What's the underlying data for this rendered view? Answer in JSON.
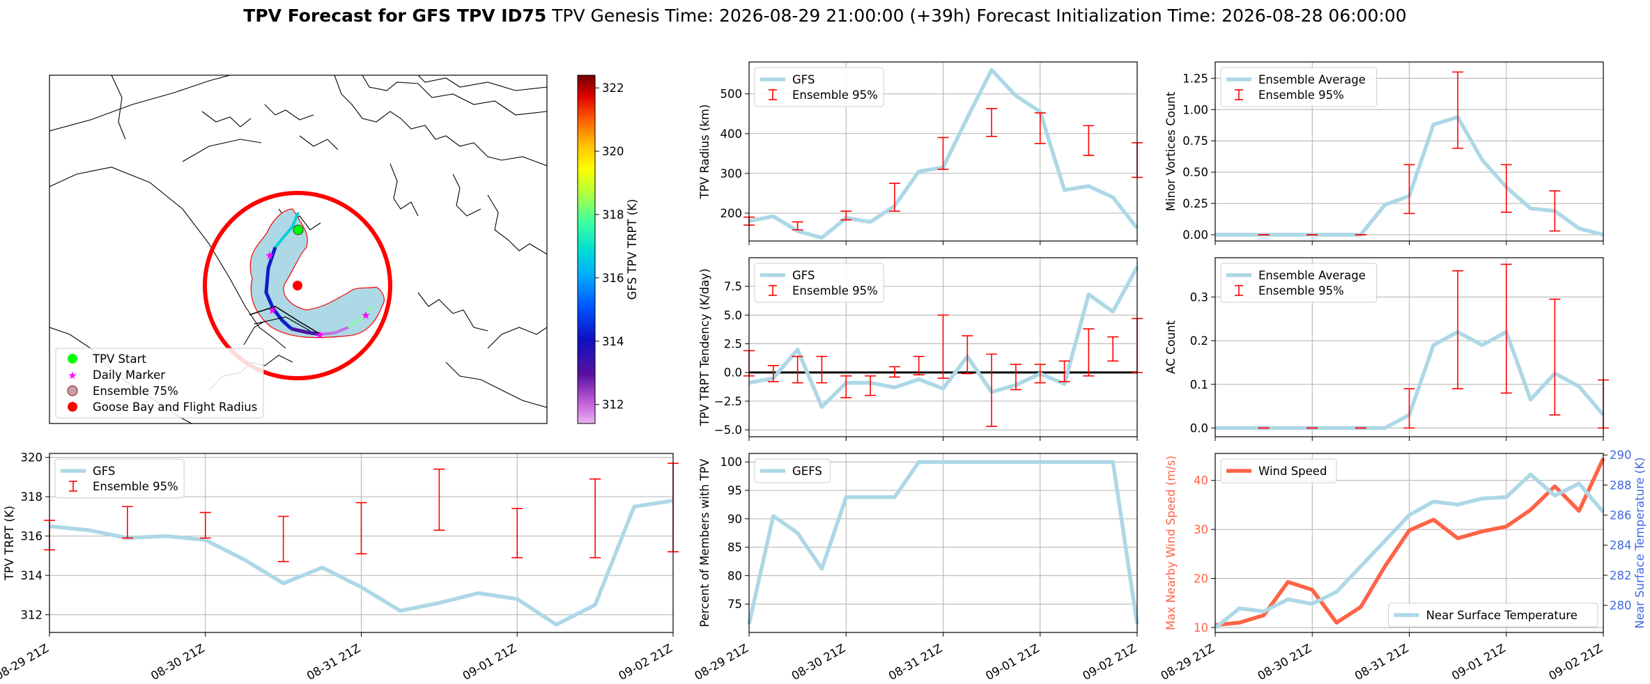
{
  "title": {
    "bold": "TPV Forecast for GFS TPV ID75",
    "genesis": "TPV Genesis Time: 2026-08-29 21:00:00 (+39h)",
    "init": "Forecast Initialization Time: 2026-08-28 06:00:00"
  },
  "time_ticks": [
    "08-29 21Z",
    "08-30 21Z",
    "08-31 21Z",
    "09-01 21Z",
    "09-02 21Z"
  ],
  "colors": {
    "gfs_line": "#add8e6",
    "ensemble_bar": "#ff0000",
    "wind": "#ff6347",
    "temp_axis": "#4169e1",
    "zero_line": "#000000",
    "track_start": "#00ff00",
    "daily_marker": "#ff00ff",
    "ensemble_shade": "#add8e6",
    "flight_radius": "#ff0000"
  },
  "map": {
    "colorbar_label": "GFS TPV TRPT (K)",
    "colorbar_ticks": [
      "312",
      "314",
      "316",
      "318",
      "320",
      "322"
    ],
    "colorbar_range": [
      311.4,
      322.4
    ],
    "legend": [
      "TPV Start",
      "Daily Marker",
      "Ensemble 75%",
      "Goose Bay and Flight Radius"
    ]
  },
  "chart_data": [
    {
      "id": "radius",
      "type": "line",
      "ylabel": "TPV Radius (km)",
      "ylim": [
        130,
        580
      ],
      "yticks": [
        200,
        300,
        400,
        500
      ],
      "legend": [
        "GFS",
        "Ensemble 95%"
      ],
      "series": [
        {
          "name": "GFS",
          "values": [
            180,
            192,
            155,
            138,
            188,
            178,
            218,
            305,
            315,
            440,
            560,
            495,
            455,
            258,
            268,
            240,
            162
          ]
        }
      ],
      "ensemble_95": [
        {
          "i": 0,
          "low": 170,
          "high": 190
        },
        {
          "i": 2,
          "low": 158,
          "high": 178
        },
        {
          "i": 4,
          "low": 183,
          "high": 205
        },
        {
          "i": 6,
          "low": 205,
          "high": 275
        },
        {
          "i": 8,
          "low": 310,
          "high": 390
        },
        {
          "i": 10,
          "low": 393,
          "high": 463
        },
        {
          "i": 12,
          "low": 375,
          "high": 452
        },
        {
          "i": 14,
          "low": 345,
          "high": 420
        },
        {
          "i": 16,
          "low": 290,
          "high": 377
        }
      ]
    },
    {
      "id": "minor",
      "type": "line",
      "ylabel": "Minor Vortices Count",
      "ylim": [
        -0.05,
        1.38
      ],
      "yticks": [
        "0.00",
        "0.25",
        "0.50",
        "0.75",
        "1.00",
        "1.25"
      ],
      "legend": [
        "Ensemble Average",
        "Ensemble 95%"
      ],
      "series": [
        {
          "name": "Ensemble Average",
          "values": [
            0,
            0,
            0,
            0,
            0,
            0,
            0,
            0.24,
            0.31,
            0.88,
            0.94,
            0.6,
            0.38,
            0.21,
            0.19,
            0.05,
            0
          ]
        }
      ],
      "ensemble_95": [
        {
          "i": 2,
          "low": 0,
          "high": 0
        },
        {
          "i": 4,
          "low": 0,
          "high": 0
        },
        {
          "i": 6,
          "low": 0,
          "high": 0
        },
        {
          "i": 8,
          "low": 0.17,
          "high": 0.56
        },
        {
          "i": 10,
          "low": 0.69,
          "high": 1.3
        },
        {
          "i": 12,
          "low": 0.18,
          "high": 0.56
        },
        {
          "i": 14,
          "low": 0.03,
          "high": 0.35
        }
      ]
    },
    {
      "id": "tendency",
      "type": "line",
      "ylabel": "TPV TRPT Tendency (K/day)",
      "ylim": [
        -5.6,
        10
      ],
      "yticks": [
        "−5.0",
        "−2.5",
        "0.0",
        "2.5",
        "5.0",
        "7.5"
      ],
      "legend": [
        "GFS",
        "Ensemble 95%"
      ],
      "series": [
        {
          "name": "GFS",
          "values": [
            -0.9,
            -0.5,
            2.0,
            -3.0,
            -0.9,
            -0.9,
            -1.3,
            -0.6,
            -1.4,
            1.4,
            -1.7,
            -1.1,
            -0.1,
            -1.0,
            6.8,
            5.3,
            9.2
          ]
        }
      ],
      "ensemble_95": [
        {
          "i": 0,
          "low": -0.3,
          "high": 1.9
        },
        {
          "i": 1,
          "low": -0.8,
          "high": 0.6
        },
        {
          "i": 2,
          "low": -0.9,
          "high": 1.4
        },
        {
          "i": 3,
          "low": -0.9,
          "high": 1.4
        },
        {
          "i": 4,
          "low": -2.2,
          "high": -0.3
        },
        {
          "i": 5,
          "low": -2.0,
          "high": -0.3
        },
        {
          "i": 6,
          "low": -0.4,
          "high": 0.5
        },
        {
          "i": 7,
          "low": -0.2,
          "high": 1.4
        },
        {
          "i": 8,
          "low": -0.5,
          "high": 5.0
        },
        {
          "i": 9,
          "low": -0.1,
          "high": 3.2
        },
        {
          "i": 10,
          "low": -4.7,
          "high": 1.6
        },
        {
          "i": 11,
          "low": -1.5,
          "high": 0.7
        },
        {
          "i": 12,
          "low": -0.9,
          "high": 0.7
        },
        {
          "i": 13,
          "low": -0.8,
          "high": 1.0
        },
        {
          "i": 14,
          "low": -0.3,
          "high": 3.8
        },
        {
          "i": 15,
          "low": 1.0,
          "high": 3.1
        },
        {
          "i": 16,
          "low": 0.0,
          "high": 4.7
        }
      ],
      "zero_line": true
    },
    {
      "id": "ac",
      "type": "line",
      "ylabel": "AC Count",
      "ylim": [
        -0.02,
        0.39
      ],
      "yticks": [
        "0.0",
        "0.1",
        "0.2",
        "0.3"
      ],
      "legend": [
        "Ensemble Average",
        "Ensemble 95%"
      ],
      "series": [
        {
          "name": "Ensemble Average",
          "values": [
            0,
            0,
            0,
            0,
            0,
            0,
            0,
            0,
            0.03,
            0.19,
            0.22,
            0.19,
            0.22,
            0.065,
            0.125,
            0.095,
            0.03
          ]
        }
      ],
      "ensemble_95": [
        {
          "i": 2,
          "low": 0,
          "high": 0
        },
        {
          "i": 4,
          "low": 0,
          "high": 0
        },
        {
          "i": 6,
          "low": 0,
          "high": 0
        },
        {
          "i": 8,
          "low": 0,
          "high": 0.09
        },
        {
          "i": 10,
          "low": 0.09,
          "high": 0.36
        },
        {
          "i": 12,
          "low": 0.08,
          "high": 0.375
        },
        {
          "i": 14,
          "low": 0.03,
          "high": 0.295
        },
        {
          "i": 16,
          "low": 0,
          "high": 0.11
        }
      ]
    },
    {
      "id": "trpt",
      "type": "line",
      "ylabel": "TPV TRPT (K)",
      "ylim": [
        311.1,
        320.2
      ],
      "yticks": [
        "312",
        "314",
        "316",
        "318",
        "320"
      ],
      "legend": [
        "GFS",
        "Ensemble 95%"
      ],
      "series": [
        {
          "name": "GFS",
          "values": [
            316.5,
            316.3,
            315.9,
            316.0,
            315.8,
            314.8,
            313.6,
            314.4,
            313.4,
            312.2,
            312.6,
            313.1,
            312.8,
            311.5,
            312.5,
            317.5,
            317.8
          ]
        }
      ],
      "ensemble_95": [
        {
          "i": 0,
          "low": 315.3,
          "high": 316.8
        },
        {
          "i": 2,
          "low": 315.9,
          "high": 317.5
        },
        {
          "i": 4,
          "low": 315.9,
          "high": 317.2
        },
        {
          "i": 6,
          "low": 314.7,
          "high": 317.0
        },
        {
          "i": 8,
          "low": 315.1,
          "high": 317.7
        },
        {
          "i": 10,
          "low": 316.3,
          "high": 319.4
        },
        {
          "i": 12,
          "low": 314.9,
          "high": 317.4
        },
        {
          "i": 14,
          "low": 314.9,
          "high": 318.9
        },
        {
          "i": 16,
          "low": 315.2,
          "high": 319.7
        }
      ]
    },
    {
      "id": "percent",
      "type": "line",
      "ylabel": "Percent of Members with TPV",
      "ylim": [
        70,
        101.5
      ],
      "yticks": [
        "75",
        "80",
        "85",
        "90",
        "95",
        "100"
      ],
      "legend": [
        "GEFS"
      ],
      "series": [
        {
          "name": "GEFS",
          "values": [
            71.5,
            90.5,
            87.5,
            81.2,
            93.8,
            93.8,
            93.8,
            100,
            100,
            100,
            100,
            100,
            100,
            100,
            100,
            100,
            71.5
          ]
        }
      ]
    },
    {
      "id": "wind_temp",
      "type": "line",
      "ylabel": "Max Nearby Wind Speed (m/s)",
      "ylabel_right": "Near Surface Temperature (K)",
      "ylim": [
        9,
        45.5
      ],
      "ylim_right": [
        278.2,
        290.1
      ],
      "yticks": [
        "10",
        "20",
        "30",
        "40"
      ],
      "yticks_right": [
        "280",
        "282",
        "284",
        "286",
        "288",
        "290"
      ],
      "legend": [
        "Wind Speed"
      ],
      "legend_right": [
        "Near Surface Temperature"
      ],
      "series": [
        {
          "name": "Wind Speed",
          "axis": "left",
          "values": [
            10.5,
            11.0,
            12.5,
            19.3,
            17.7,
            11.0,
            14.2,
            22.5,
            29.8,
            32.0,
            28.2,
            29.6,
            30.6,
            34.0,
            38.8,
            33.8,
            44.5
          ]
        },
        {
          "name": "Near Surface Temperature",
          "axis": "right",
          "values": [
            278.5,
            279.8,
            279.6,
            280.4,
            280.1,
            280.9,
            282.6,
            284.3,
            286.0,
            286.9,
            286.7,
            287.1,
            287.2,
            288.7,
            287.3,
            288.1,
            286.2
          ]
        }
      ]
    }
  ]
}
